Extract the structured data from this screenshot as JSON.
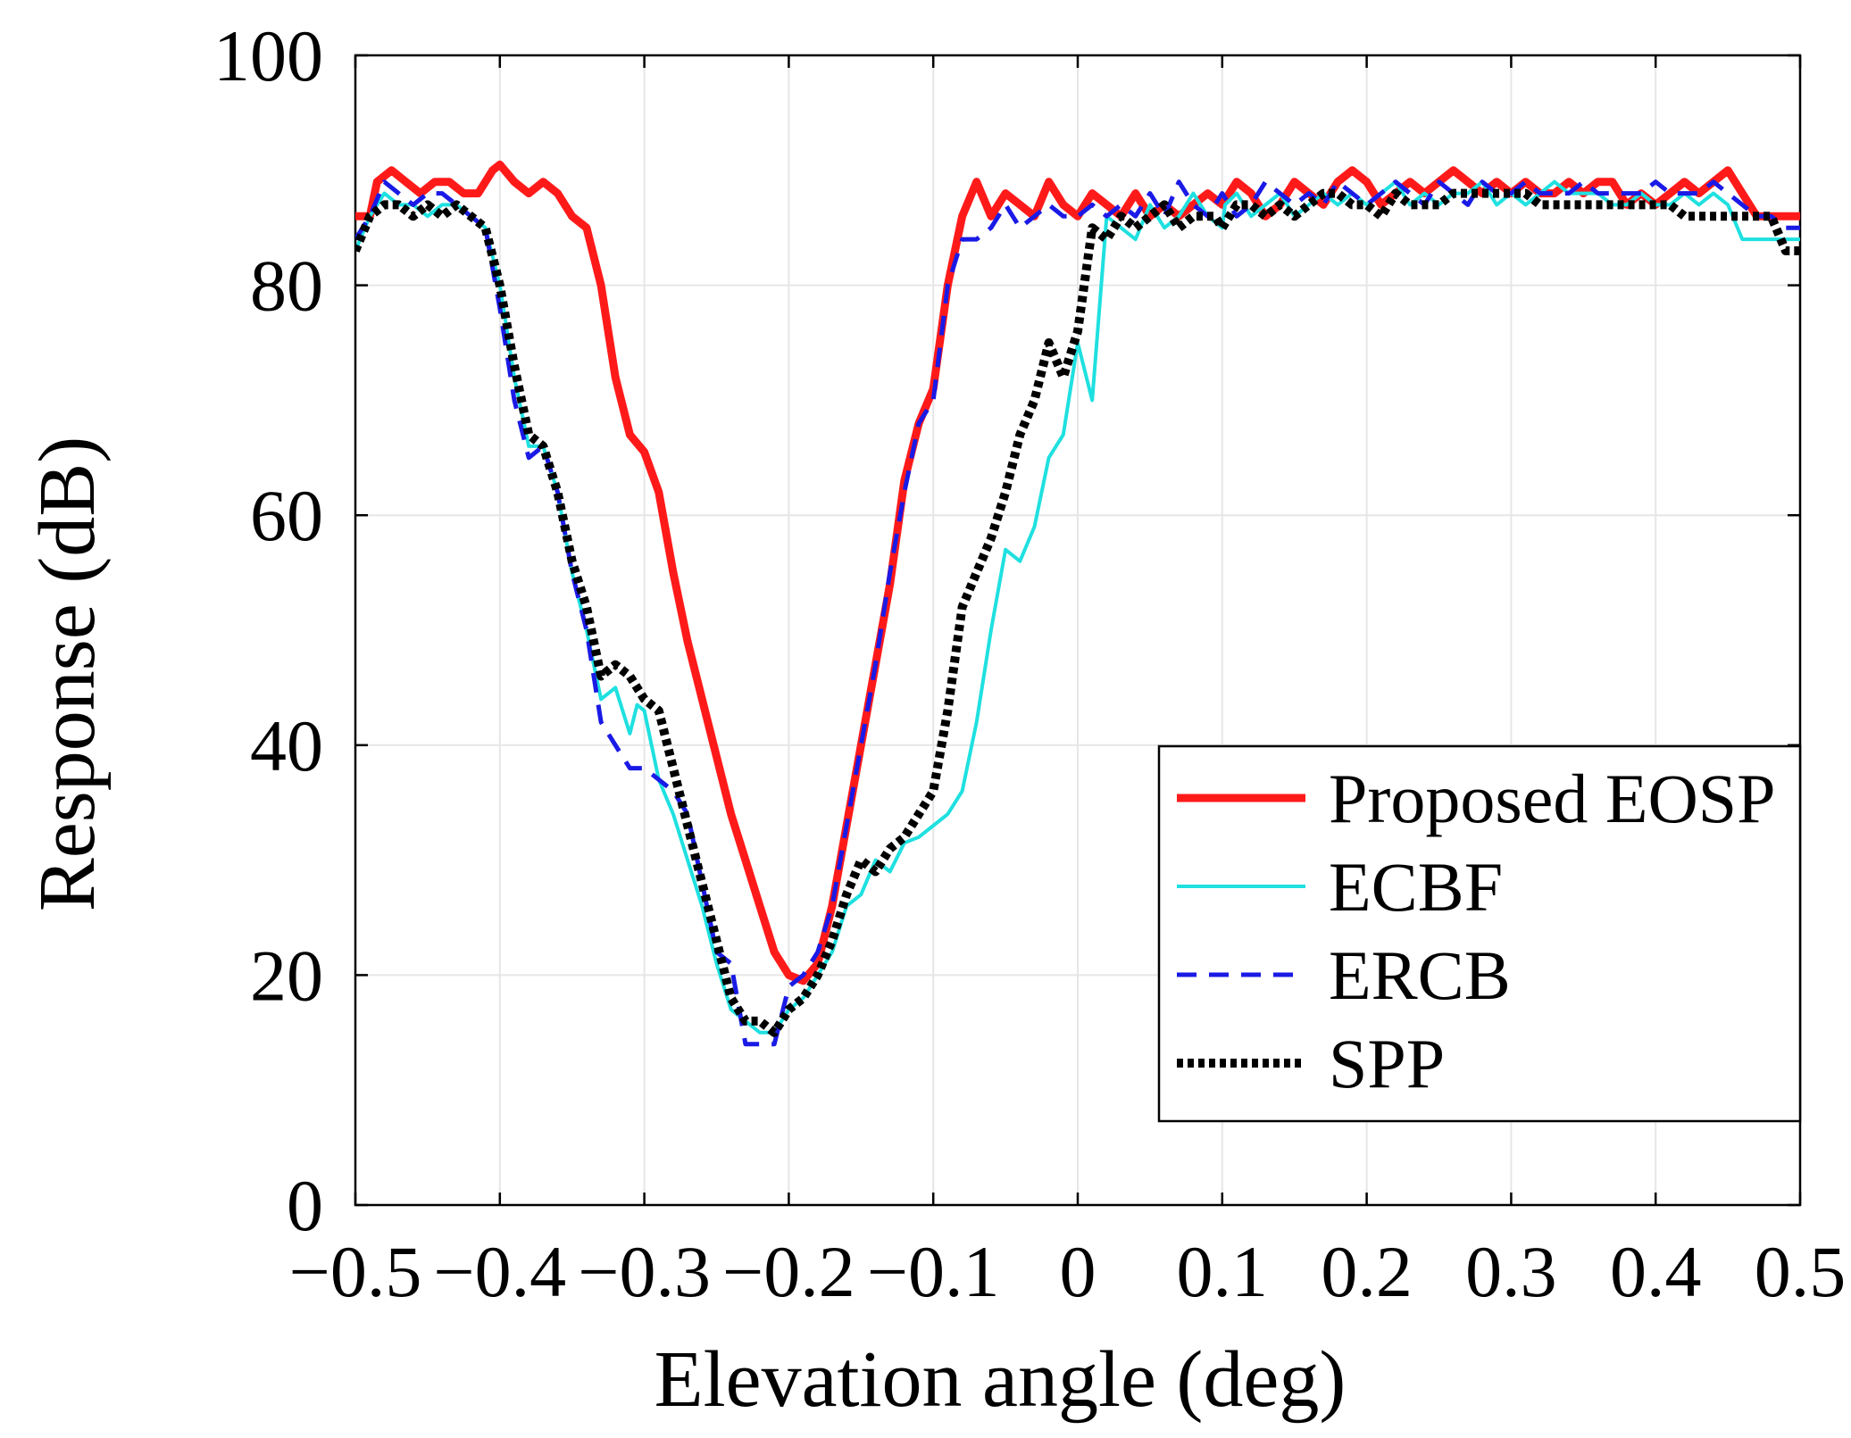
{
  "chart_data": {
    "type": "line",
    "xlabel": "Elevation angle (deg)",
    "ylabel": "Response (dB)",
    "xlim": [
      -0.5,
      0.5
    ],
    "ylim": [
      0,
      100
    ],
    "xticks": [
      -0.5,
      -0.4,
      -0.3,
      -0.2,
      -0.1,
      0,
      0.1,
      0.2,
      0.3,
      0.4,
      0.5
    ],
    "xtick_labels": [
      "−0.5",
      "−0.4",
      "−0.3",
      "−0.2",
      "−0.1",
      "0",
      "0.1",
      "0.2",
      "0.3",
      "0.4",
      "0.5"
    ],
    "yticks": [
      0,
      20,
      40,
      60,
      80,
      100
    ],
    "ytick_labels": [
      "0",
      "20",
      "40",
      "60",
      "80",
      "100"
    ],
    "grid": true,
    "legend_position": "bottom-right",
    "series": [
      {
        "name": "Proposed EOSP",
        "color": "#ff1a1a",
        "style": "solid-thick",
        "x": [
          -0.5,
          -0.49,
          -0.485,
          -0.475,
          -0.465,
          -0.455,
          -0.445,
          -0.435,
          -0.425,
          -0.415,
          -0.405,
          -0.4,
          -0.39,
          -0.38,
          -0.37,
          -0.36,
          -0.35,
          -0.34,
          -0.33,
          -0.32,
          -0.31,
          -0.3,
          -0.29,
          -0.28,
          -0.27,
          -0.26,
          -0.25,
          -0.24,
          -0.23,
          -0.22,
          -0.21,
          -0.2,
          -0.19,
          -0.18,
          -0.17,
          -0.16,
          -0.15,
          -0.14,
          -0.13,
          -0.12,
          -0.11,
          -0.1,
          -0.09,
          -0.08,
          -0.07,
          -0.06,
          -0.05,
          -0.04,
          -0.03,
          -0.02,
          -0.01,
          0,
          0.01,
          0.02,
          0.03,
          0.04,
          0.05,
          0.06,
          0.07,
          0.08,
          0.09,
          0.1,
          0.11,
          0.12,
          0.13,
          0.14,
          0.15,
          0.16,
          0.17,
          0.18,
          0.19,
          0.2,
          0.21,
          0.22,
          0.23,
          0.24,
          0.25,
          0.26,
          0.27,
          0.28,
          0.29,
          0.3,
          0.31,
          0.32,
          0.33,
          0.34,
          0.35,
          0.36,
          0.37,
          0.38,
          0.39,
          0.4,
          0.41,
          0.42,
          0.43,
          0.44,
          0.45,
          0.46,
          0.47,
          0.48,
          0.49,
          0.5
        ],
        "y": [
          86,
          86,
          89,
          90,
          89,
          88,
          89,
          89,
          88,
          88,
          90,
          90.5,
          89,
          88,
          89,
          88,
          86,
          85,
          80,
          72,
          67,
          65.5,
          62,
          55,
          49,
          44,
          39,
          34,
          30,
          26,
          22,
          20,
          19.5,
          21,
          26,
          33,
          40,
          47,
          54,
          63,
          68,
          71,
          80,
          86,
          89,
          86,
          88,
          87,
          86,
          89,
          87,
          86,
          88,
          87,
          86,
          88,
          86,
          87,
          86,
          87,
          88,
          87,
          89,
          88,
          86,
          87,
          89,
          88,
          87,
          89,
          90,
          89,
          87,
          88,
          89,
          88,
          89,
          90,
          89,
          88,
          89,
          88,
          89,
          88,
          88,
          89,
          88,
          89,
          89,
          87,
          88,
          87,
          88,
          89,
          88,
          89,
          90,
          88,
          86,
          86,
          86,
          86
        ]
      },
      {
        "name": "ECBF",
        "color": "#1fe0e0",
        "style": "solid-thin",
        "x": [
          -0.5,
          -0.49,
          -0.48,
          -0.47,
          -0.46,
          -0.45,
          -0.44,
          -0.43,
          -0.42,
          -0.41,
          -0.4,
          -0.39,
          -0.38,
          -0.37,
          -0.36,
          -0.35,
          -0.34,
          -0.33,
          -0.32,
          -0.31,
          -0.305,
          -0.3,
          -0.295,
          -0.29,
          -0.285,
          -0.28,
          -0.27,
          -0.26,
          -0.25,
          -0.24,
          -0.23,
          -0.22,
          -0.21,
          -0.2,
          -0.19,
          -0.18,
          -0.17,
          -0.16,
          -0.15,
          -0.14,
          -0.13,
          -0.12,
          -0.11,
          -0.1,
          -0.09,
          -0.08,
          -0.07,
          -0.06,
          -0.05,
          -0.04,
          -0.03,
          -0.02,
          -0.01,
          0,
          0.01,
          0.02,
          0.03,
          0.04,
          0.05,
          0.06,
          0.07,
          0.08,
          0.09,
          0.1,
          0.102,
          0.11,
          0.12,
          0.13,
          0.14,
          0.15,
          0.16,
          0.17,
          0.18,
          0.19,
          0.2,
          0.21,
          0.22,
          0.23,
          0.24,
          0.25,
          0.26,
          0.27,
          0.28,
          0.29,
          0.3,
          0.31,
          0.32,
          0.33,
          0.34,
          0.35,
          0.36,
          0.37,
          0.38,
          0.39,
          0.4,
          0.41,
          0.42,
          0.43,
          0.44,
          0.45,
          0.46,
          0.47,
          0.48,
          0.49,
          0.5
        ],
        "y": [
          83,
          86,
          88,
          87,
          87,
          86,
          87,
          87,
          86,
          85,
          80,
          72,
          66,
          66,
          62,
          55,
          50,
          44,
          45,
          41,
          43.5,
          43,
          40,
          37,
          35.5,
          34,
          30,
          26,
          21,
          17,
          16,
          15,
          15,
          17,
          18,
          20,
          22,
          26,
          27,
          30,
          29,
          31.5,
          32,
          33,
          34,
          36,
          42,
          50,
          57,
          56,
          59,
          65,
          67,
          75,
          70,
          86,
          85,
          84,
          87,
          85,
          86,
          88,
          86,
          85,
          87,
          88,
          86,
          87,
          88,
          86,
          87,
          88,
          87,
          88,
          87,
          88,
          89,
          87,
          88,
          87,
          88,
          88,
          89,
          87,
          88,
          87,
          88,
          89,
          88,
          88,
          88,
          87,
          87,
          88,
          87,
          87,
          88,
          87,
          88,
          87,
          84,
          84,
          84,
          84,
          84
        ]
      },
      {
        "name": "ERCB",
        "color": "#1a1ae6",
        "style": "dashed",
        "x": [
          -0.5,
          -0.49,
          -0.48,
          -0.47,
          -0.46,
          -0.45,
          -0.44,
          -0.43,
          -0.42,
          -0.41,
          -0.4,
          -0.39,
          -0.38,
          -0.37,
          -0.36,
          -0.35,
          -0.34,
          -0.33,
          -0.32,
          -0.31,
          -0.3,
          -0.29,
          -0.28,
          -0.27,
          -0.26,
          -0.25,
          -0.24,
          -0.23,
          -0.22,
          -0.21,
          -0.2,
          -0.19,
          -0.18,
          -0.17,
          -0.16,
          -0.15,
          -0.14,
          -0.13,
          -0.12,
          -0.11,
          -0.1,
          -0.09,
          -0.08,
          -0.07,
          -0.06,
          -0.05,
          -0.04,
          -0.03,
          -0.02,
          -0.01,
          0,
          0.01,
          0.02,
          0.03,
          0.04,
          0.05,
          0.06,
          0.07,
          0.08,
          0.09,
          0.1,
          0.11,
          0.12,
          0.13,
          0.14,
          0.15,
          0.16,
          0.17,
          0.18,
          0.19,
          0.2,
          0.21,
          0.22,
          0.23,
          0.24,
          0.25,
          0.26,
          0.27,
          0.28,
          0.29,
          0.3,
          0.31,
          0.32,
          0.33,
          0.34,
          0.35,
          0.36,
          0.37,
          0.38,
          0.39,
          0.4,
          0.41,
          0.42,
          0.43,
          0.44,
          0.45,
          0.46,
          0.47,
          0.48,
          0.49,
          0.5
        ],
        "y": [
          84,
          86,
          89,
          88,
          87,
          88,
          88,
          87,
          86,
          85,
          78,
          70,
          65,
          66,
          62,
          55,
          50,
          42,
          40,
          38,
          38,
          37,
          36,
          34,
          28,
          22,
          21,
          14,
          14,
          14,
          19,
          20,
          22,
          26,
          33,
          40,
          47,
          55,
          62,
          68,
          70,
          80,
          84,
          84,
          85,
          87,
          85,
          86,
          87,
          86,
          86,
          87,
          86,
          87,
          86,
          88,
          86,
          89,
          87,
          86,
          88,
          86,
          87,
          89,
          88,
          87,
          88,
          87,
          89,
          88,
          87,
          88,
          89,
          88,
          87,
          89,
          88,
          87,
          89,
          88,
          88,
          89,
          88,
          88,
          88,
          89,
          88,
          88,
          88,
          88,
          89,
          88,
          88,
          88,
          89,
          88,
          87,
          86,
          86,
          85,
          85
        ]
      },
      {
        "name": "SPP",
        "color": "#000000",
        "style": "dotted",
        "x": [
          -0.5,
          -0.49,
          -0.48,
          -0.47,
          -0.46,
          -0.45,
          -0.44,
          -0.43,
          -0.42,
          -0.41,
          -0.4,
          -0.39,
          -0.38,
          -0.37,
          -0.36,
          -0.35,
          -0.34,
          -0.33,
          -0.32,
          -0.31,
          -0.3,
          -0.29,
          -0.28,
          -0.27,
          -0.26,
          -0.25,
          -0.24,
          -0.23,
          -0.22,
          -0.21,
          -0.2,
          -0.19,
          -0.18,
          -0.17,
          -0.16,
          -0.15,
          -0.14,
          -0.13,
          -0.12,
          -0.11,
          -0.1,
          -0.09,
          -0.08,
          -0.07,
          -0.06,
          -0.05,
          -0.04,
          -0.03,
          -0.02,
          -0.01,
          0,
          0.01,
          0.02,
          0.03,
          0.04,
          0.05,
          0.06,
          0.07,
          0.08,
          0.09,
          0.095,
          0.1,
          0.11,
          0.12,
          0.13,
          0.14,
          0.15,
          0.16,
          0.17,
          0.18,
          0.19,
          0.2,
          0.21,
          0.22,
          0.23,
          0.24,
          0.25,
          0.26,
          0.27,
          0.28,
          0.29,
          0.3,
          0.31,
          0.32,
          0.33,
          0.34,
          0.35,
          0.36,
          0.37,
          0.38,
          0.39,
          0.4,
          0.41,
          0.42,
          0.43,
          0.44,
          0.45,
          0.46,
          0.47,
          0.48,
          0.49,
          0.5
        ],
        "y": [
          83,
          86,
          87,
          87,
          86,
          87,
          86,
          87,
          86,
          85,
          80,
          73,
          67,
          66,
          62,
          56,
          52,
          46,
          47,
          46,
          44,
          43,
          38,
          33,
          28,
          23,
          18,
          16,
          16,
          15,
          17,
          18,
          20,
          23,
          27,
          30,
          29,
          31,
          32,
          34,
          36,
          43,
          52,
          55,
          58,
          62,
          67,
          70,
          75,
          72,
          76,
          85,
          84,
          86,
          85,
          86,
          87,
          85,
          86,
          86,
          86,
          85,
          87,
          87,
          86,
          87,
          86,
          87,
          88,
          88,
          87,
          87,
          86,
          88,
          87,
          87,
          87,
          88,
          88,
          88,
          88,
          88,
          88,
          87,
          87,
          87,
          87,
          87,
          87,
          87,
          87,
          87,
          87,
          86,
          86,
          86,
          86,
          86,
          86,
          86,
          83,
          83
        ]
      }
    ]
  }
}
